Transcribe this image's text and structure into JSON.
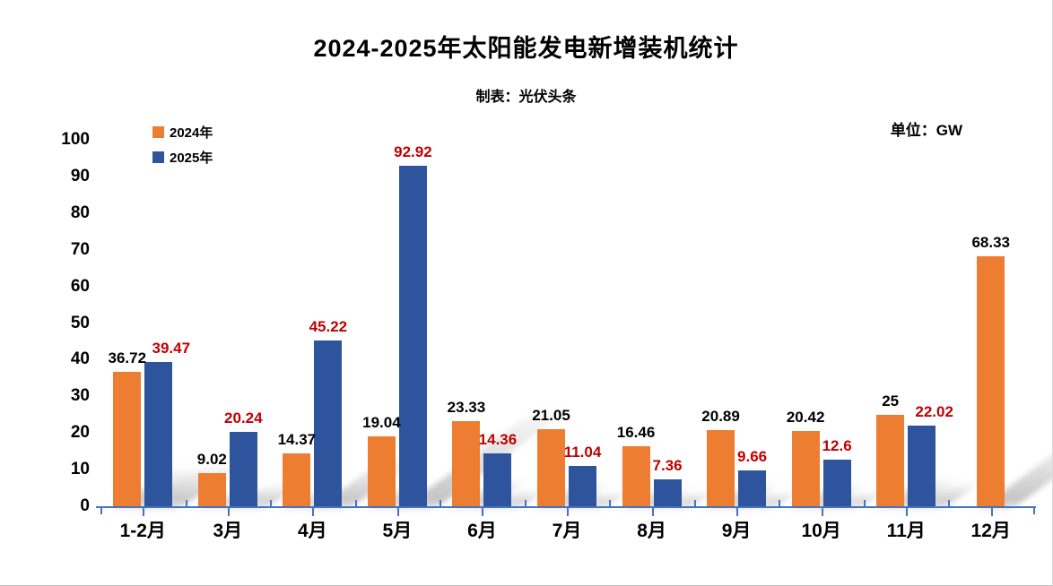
{
  "header": {
    "title": "2024-2025年太阳能发电新增装机统计",
    "subtitle": "制表：光伏头条",
    "unit_label": "单位：GW"
  },
  "legend": {
    "items": [
      {
        "label": "2024年",
        "color": "#ED7D31"
      },
      {
        "label": "2025年",
        "color": "#2F549E"
      }
    ]
  },
  "colors": {
    "series_2024": "#ED7D31",
    "series_2025": "#2F549E",
    "data_label_2024": "#000000",
    "data_label_2025": "#C00000",
    "axis": "#4472C4",
    "shadow": "#8C8C8C",
    "text": "#000000",
    "background": "#FFFFFF"
  },
  "chart_data": {
    "type": "bar",
    "title": "2024-2025年太阳能发电新增装机统计",
    "subtitle": "制表：光伏头条",
    "unit": "GW",
    "categories": [
      "1-2月",
      "3月",
      "4月",
      "5月",
      "6月",
      "7月",
      "8月",
      "9月",
      "10月",
      "11月",
      "12月"
    ],
    "series": [
      {
        "name": "2024年",
        "color": "#ED7D31",
        "label_color": "#000000",
        "values": [
          36.72,
          9.02,
          14.37,
          19.04,
          23.33,
          21.05,
          16.46,
          20.89,
          20.42,
          25,
          68.33
        ],
        "labels": [
          "36.72",
          "9.02",
          "14.37",
          "19.04",
          "23.33",
          "21.05",
          "16.46",
          "20.89",
          "20.42",
          "25",
          "68.33"
        ]
      },
      {
        "name": "2025年",
        "color": "#2F549E",
        "label_color": "#C00000",
        "values": [
          39.47,
          20.24,
          45.22,
          92.92,
          14.36,
          11.04,
          7.36,
          9.66,
          12.6,
          22.02,
          null
        ],
        "labels": [
          "39.47",
          "20.24",
          "45.22",
          "92.92",
          "14.36",
          "11.04",
          "7.36",
          "9.66",
          "12.6",
          "22.02",
          ""
        ]
      }
    ],
    "xlabel": "",
    "ylabel": "",
    "ylim": [
      0,
      100
    ],
    "yticks": [
      0,
      10,
      20,
      30,
      40,
      50,
      60,
      70,
      80,
      90,
      100
    ],
    "grid": false,
    "legend_position": "top-left",
    "data_labels": true
  }
}
